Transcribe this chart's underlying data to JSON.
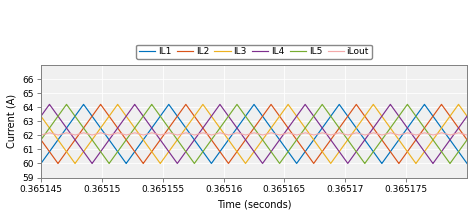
{
  "title": "",
  "xlabel": "Time (seconds)",
  "ylabel": "Current (A)",
  "xlim": [
    0.365145,
    0.36518
  ],
  "ylim": [
    59,
    67
  ],
  "yticks": [
    59,
    60,
    61,
    62,
    63,
    64,
    65,
    66
  ],
  "xticks": [
    0.365145,
    0.36515,
    0.365155,
    0.36516,
    0.365165,
    0.36517,
    0.365175
  ],
  "xtick_labels": [
    "0.365145",
    "0.36515",
    "0.365155",
    "0.36516",
    "0.365165",
    "0.36517",
    "0.365175"
  ],
  "num_phases": 5,
  "I_mean": 62.1,
  "I_ripple": 2.1,
  "period": 7e-06,
  "phase_offsets": [
    0.0,
    0.2,
    0.4,
    0.6,
    0.8
  ],
  "colors": [
    "#0072BD",
    "#D95319",
    "#EDB120",
    "#7E2F8E",
    "#77AC30"
  ],
  "iout_color": "#F4AAAA",
  "legend_labels": [
    "IL1",
    "IL2",
    "IL3",
    "IL4",
    "IL5",
    "iLout"
  ],
  "linewidth": 0.85,
  "plot_bg_color": "#F0F0F0",
  "fig_bg_color": "#FFFFFF",
  "font_size": 7,
  "tick_font_size": 6.5,
  "grid_color": "#FFFFFF",
  "grid_linewidth": 0.6
}
